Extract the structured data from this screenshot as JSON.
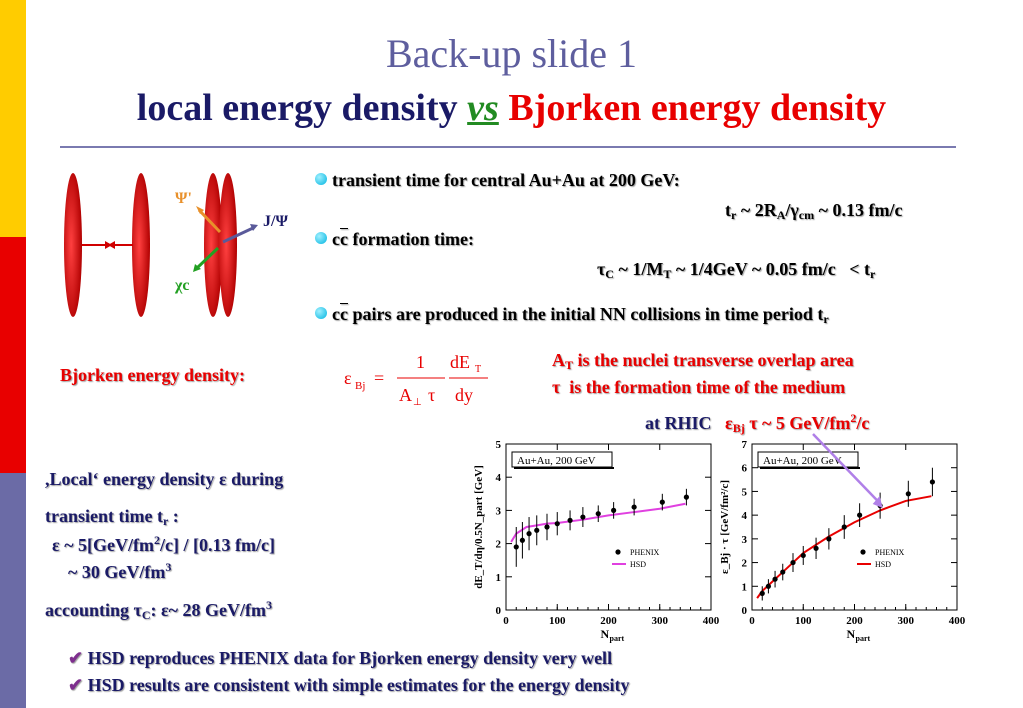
{
  "slide": {
    "title_line1": "Back-up slide 1",
    "title_line2_part1": "local energy density",
    "title_line2_vs": "vs",
    "title_line2_part2": "Bjorken energy density"
  },
  "colors": {
    "sidebar_top": "#FFCC00",
    "sidebar_middle": "#E80000",
    "sidebar_bottom": "#6B6BA6",
    "title_gray": "#5E5E9E",
    "navy": "#1A1A66",
    "red": "#E80000",
    "pink_hsd": "#E040E0",
    "bullet_cyan": "#00B4E0"
  },
  "diagram": {
    "psi_prime": "Ψ'",
    "jpsi": "J/Ψ",
    "chi_c": "χc"
  },
  "bullets": [
    {
      "text": "transient time for central Au+Au at 200 GeV:"
    },
    {
      "text": "formation time:"
    },
    {
      "text": "pairs are produced in the initial NN collisions in time period"
    }
  ],
  "bjorken": {
    "label": "Bjorken energy density:",
    "note1": "is the nuclei transverse overlap area",
    "note2": "is the formation time of the medium",
    "rhic_label": "at RHIC",
    "rhic_value": "~ 5 GeV/fm"
  },
  "local": {
    "line1": ",Local‘ energy density ε during",
    "line2": "transient time t",
    "line3": "ε ~ 5[GeV/fm",
    "line3b": "/c] / [0.13 fm/c]",
    "line4": "~ 30 GeV/fm",
    "line5": "accounting τ",
    "line5b": ":  ε~ 28 GeV/fm"
  },
  "conclusions": [
    "HSD reproduces PHENIX data for Bjorken energy density very well",
    "HSD results are consistent with simple estimates for the energy density"
  ],
  "chart_data": [
    {
      "type": "scatter",
      "title": "Au+Au, 200 GeV",
      "xlabel": "N_part",
      "ylabel": "dE_T/dη/0.5N_part [GeV]",
      "xlim": [
        0,
        400
      ],
      "ylim": [
        0,
        5
      ],
      "xticks": [
        0,
        100,
        200,
        300,
        400
      ],
      "yticks": [
        0,
        1,
        2,
        3,
        4,
        5
      ],
      "series": [
        {
          "name": "PHENIX",
          "style": "points-with-errorbars",
          "color": "#000000",
          "x": [
            20,
            32,
            45,
            60,
            80,
            100,
            125,
            150,
            180,
            210,
            250,
            305,
            352
          ],
          "y": [
            1.9,
            2.1,
            2.3,
            2.4,
            2.5,
            2.6,
            2.7,
            2.8,
            2.9,
            3.0,
            3.1,
            3.25,
            3.4
          ],
          "err": [
            0.6,
            0.55,
            0.5,
            0.45,
            0.4,
            0.35,
            0.3,
            0.3,
            0.25,
            0.25,
            0.25,
            0.25,
            0.25
          ]
        },
        {
          "name": "HSD",
          "style": "line",
          "color": "#E040E0",
          "x": [
            10,
            20,
            40,
            60,
            80,
            100,
            150,
            200,
            250,
            300,
            350
          ],
          "y": [
            2.05,
            2.3,
            2.5,
            2.55,
            2.6,
            2.62,
            2.72,
            2.85,
            2.95,
            3.05,
            3.2
          ]
        }
      ]
    },
    {
      "type": "scatter",
      "title": "Au+Au, 200 GeV",
      "xlabel": "N_part",
      "ylabel": "ε_Bj · τ [GeV/fm²/c]",
      "xlim": [
        0,
        400
      ],
      "ylim": [
        0,
        7
      ],
      "xticks": [
        0,
        100,
        200,
        300,
        400
      ],
      "yticks": [
        0,
        1,
        2,
        3,
        4,
        5,
        6,
        7
      ],
      "series": [
        {
          "name": "PHENIX",
          "style": "points-with-errorbars",
          "color": "#000000",
          "x": [
            20,
            32,
            45,
            60,
            80,
            100,
            125,
            150,
            180,
            210,
            250,
            305,
            352
          ],
          "y": [
            0.7,
            1.0,
            1.3,
            1.6,
            2.0,
            2.3,
            2.6,
            3.0,
            3.5,
            4.0,
            4.4,
            4.9,
            5.4
          ],
          "err": [
            0.3,
            0.3,
            0.35,
            0.35,
            0.4,
            0.4,
            0.45,
            0.45,
            0.5,
            0.5,
            0.55,
            0.55,
            0.6
          ]
        },
        {
          "name": "HSD",
          "style": "line",
          "color": "#E80000",
          "x": [
            10,
            20,
            40,
            60,
            80,
            100,
            150,
            200,
            250,
            300,
            350
          ],
          "y": [
            0.5,
            0.8,
            1.2,
            1.6,
            2.0,
            2.4,
            3.1,
            3.7,
            4.2,
            4.6,
            4.8
          ]
        }
      ]
    }
  ]
}
